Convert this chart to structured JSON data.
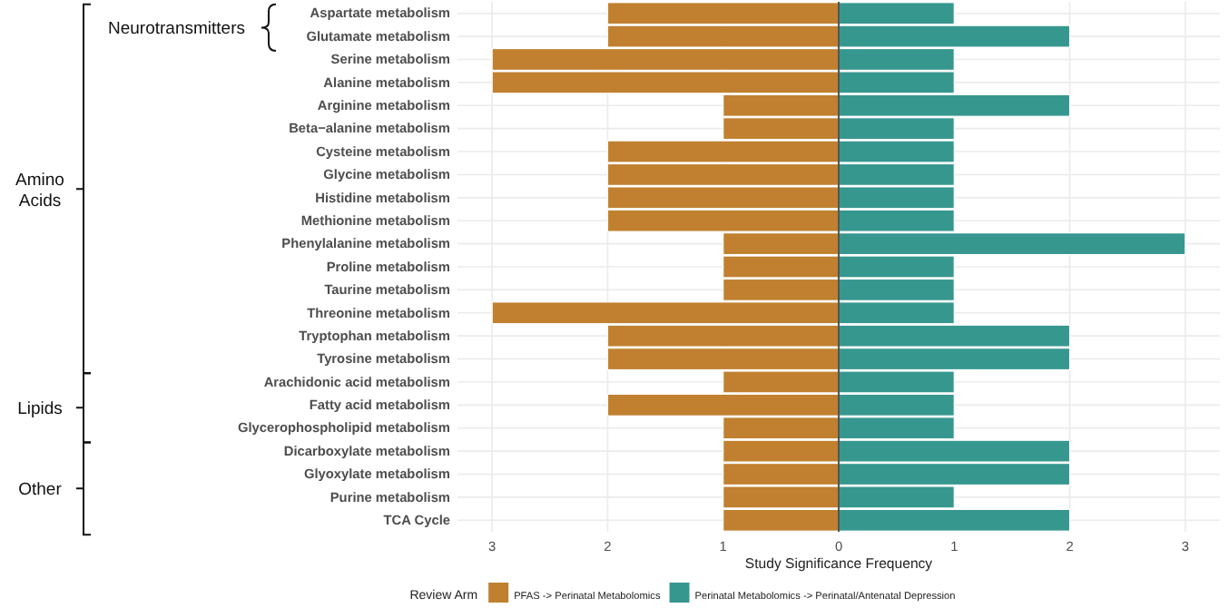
{
  "chart_data": {
    "type": "bar",
    "orientation": "horizontal",
    "xlabel": "Study Significance Frequency",
    "legend_title": "Review Arm",
    "legend": "bottom",
    "grid": true,
    "stacked": true,
    "categories": [
      "Aspartate metabolism",
      "Glutamate metabolism",
      "Serine metabolism",
      "Alanine metabolism",
      "Arginine metabolism",
      "Beta−alanine metabolism",
      "Cysteine metabolism",
      "Glycine metabolism",
      "Histidine metabolism",
      "Methionine metabolism",
      "Phenylalanine metabolism",
      "Proline metabolism",
      "Taurine metabolism",
      "Threonine metabolism",
      "Tryptophan metabolism",
      "Tyrosine metabolism",
      "Arachidonic acid metabolism",
      "Fatty acid metabolism",
      "Glycerophospholipid metabolism",
      "Dicarboxylate metabolism",
      "Glyoxylate metabolism",
      "Purine metabolism",
      "TCA Cycle"
    ],
    "series": [
      {
        "name": "PFAS -> Perinatal Metabolomics",
        "color": "#c0802f",
        "values": [
          -2,
          -2,
          -3,
          -3,
          -1,
          -1,
          -2,
          -2,
          -2,
          -2,
          -1,
          -1,
          -1,
          -3,
          -2,
          -2,
          -1,
          -2,
          -1,
          -1,
          -1,
          -1,
          -1
        ]
      },
      {
        "name": "Perinatal Metabolomics -> Perinatal/Antenatal Depression",
        "color": "#36978f",
        "values": [
          1,
          2,
          1,
          1,
          2,
          1,
          1,
          1,
          1,
          1,
          3,
          1,
          1,
          1,
          2,
          2,
          1,
          1,
          1,
          2,
          2,
          1,
          2
        ]
      }
    ],
    "xlim": [
      -3.3,
      3.3
    ],
    "xticks": [
      {
        "value": -3,
        "label": "3"
      },
      {
        "value": -2,
        "label": "2"
      },
      {
        "value": -1,
        "label": "1"
      },
      0,
      1,
      2,
      3
    ],
    "annotations": [
      "Neurotransmitters",
      "Amino Acids",
      "Lipids",
      "Other"
    ]
  }
}
